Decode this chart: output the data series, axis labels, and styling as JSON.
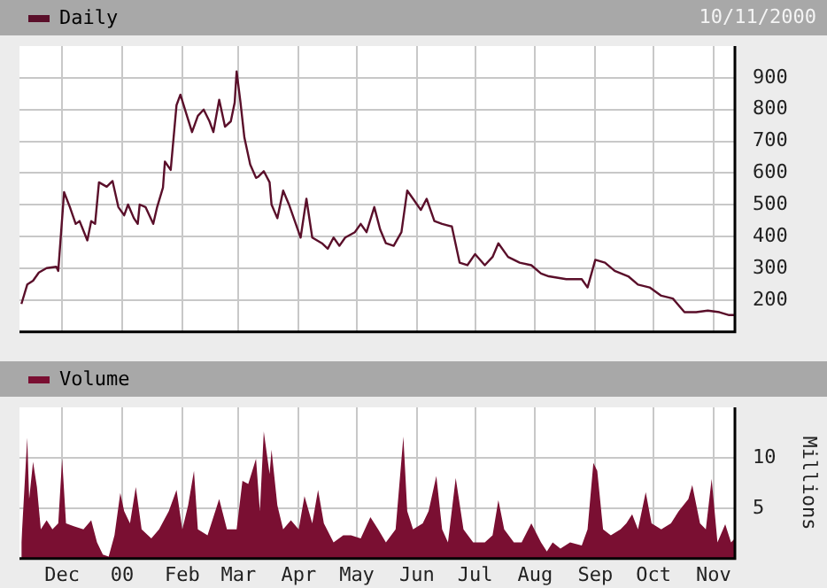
{
  "chart_data": [
    {
      "type": "line",
      "annotations": [
        "10/11/2000"
      ],
      "legend": "top left",
      "grid": true,
      "tick_labels": "y",
      "marker": "none",
      "xlim": [
        "1999-11-09",
        "2000-11-12"
      ],
      "xticks": [
        {
          "value": "1999-12-01",
          "label": null
        },
        {
          "value": "2000-01-01",
          "label": null
        },
        {
          "value": "2000-02-01",
          "label": null
        },
        {
          "value": "2000-03-01",
          "label": null
        },
        {
          "value": "2000-04-01",
          "label": null
        },
        {
          "value": "2000-05-01",
          "label": null
        },
        {
          "value": "2000-06-01",
          "label": null
        },
        {
          "value": "2000-07-01",
          "label": null
        },
        {
          "value": "2000-08-01",
          "label": null
        },
        {
          "value": "2000-09-01",
          "label": null
        },
        {
          "value": "2000-10-01",
          "label": null
        },
        {
          "value": "2000-11-01",
          "label": null
        }
      ],
      "ylim": [
        100,
        1000
      ],
      "yticks": [
        200,
        300,
        400,
        500,
        600,
        700,
        800,
        900
      ],
      "series": [
        {
          "name": "Daily",
          "color": "#5a0f2a",
          "x": [
            "1999-11-10",
            "1999-11-13",
            "1999-11-16",
            "1999-11-19",
            "1999-11-23",
            "1999-11-28",
            "1999-11-29",
            "1999-12-02",
            "1999-12-05",
            "1999-12-08",
            "1999-12-10",
            "1999-12-14",
            "1999-12-16",
            "1999-12-18",
            "1999-12-20",
            "1999-12-24",
            "1999-12-27",
            "1999-12-30",
            "2000-01-02",
            "2000-01-04",
            "2000-01-07",
            "2000-01-09",
            "2000-01-10",
            "2000-01-13",
            "2000-01-17",
            "2000-01-19",
            "2000-01-22",
            "2000-01-23",
            "2000-01-26",
            "2000-01-29",
            "2000-01-31",
            "2000-02-03",
            "2000-02-06",
            "2000-02-09",
            "2000-02-12",
            "2000-02-15",
            "2000-02-17",
            "2000-02-20",
            "2000-02-23",
            "2000-02-26",
            "2000-02-28",
            "2000-02-29",
            "2000-03-02",
            "2000-03-04",
            "2000-03-07",
            "2000-03-10",
            "2000-03-11",
            "2000-03-14",
            "2000-03-17",
            "2000-03-18",
            "2000-03-21",
            "2000-03-24",
            "2000-03-27",
            "2000-03-30",
            "2000-04-02",
            "2000-04-05",
            "2000-04-08",
            "2000-04-13",
            "2000-04-16",
            "2000-04-19",
            "2000-04-22",
            "2000-04-25",
            "2000-04-30",
            "2000-05-03",
            "2000-05-06",
            "2000-05-10",
            "2000-05-13",
            "2000-05-16",
            "2000-05-20",
            "2000-05-24",
            "2000-05-27",
            "2000-05-30",
            "2000-06-03",
            "2000-06-06",
            "2000-06-10",
            "2000-06-14",
            "2000-06-19",
            "2000-06-23",
            "2000-06-27",
            "2000-07-01",
            "2000-07-06",
            "2000-07-10",
            "2000-07-13",
            "2000-07-18",
            "2000-07-24",
            "2000-07-30",
            "2000-08-04",
            "2000-08-08",
            "2000-08-17",
            "2000-08-25",
            "2000-08-28",
            "2000-09-01",
            "2000-09-06",
            "2000-09-11",
            "2000-09-18",
            "2000-09-23",
            "2000-09-29",
            "2000-10-05",
            "2000-10-11",
            "2000-10-17",
            "2000-10-23",
            "2000-10-29",
            "2000-11-04",
            "2000-11-09",
            "2000-11-12"
          ],
          "values": [
            188,
            249,
            261,
            287,
            301,
            305,
            292,
            540,
            493,
            440,
            449,
            388,
            449,
            440,
            571,
            557,
            575,
            493,
            467,
            501,
            458,
            440,
            501,
            493,
            440,
            493,
            554,
            636,
            610,
            814,
            847,
            788,
            729,
            780,
            800,
            763,
            729,
            831,
            746,
            763,
            822,
            920,
            822,
            712,
            627,
            585,
            588,
            606,
            571,
            501,
            458,
            545,
            501,
            449,
            397,
            519,
            397,
            379,
            362,
            397,
            371,
            397,
            414,
            440,
            414,
            493,
            423,
            379,
            371,
            414,
            545,
            519,
            484,
            519,
            449,
            440,
            432,
            318,
            310,
            345,
            310,
            336,
            379,
            336,
            318,
            310,
            284,
            275,
            266,
            266,
            240,
            327,
            318,
            292,
            275,
            249,
            240,
            214,
            205,
            162,
            162,
            167,
            162,
            153,
            153
          ]
        }
      ]
    },
    {
      "type": "area",
      "ylabel": "Millions",
      "legend": "top left",
      "grid": true,
      "marker": "none",
      "xlim": [
        "1999-11-09",
        "2000-11-12"
      ],
      "xticks": [
        {
          "value": "1999-12-01",
          "label": "Dec"
        },
        {
          "value": "2000-01-01",
          "label": "00"
        },
        {
          "value": "2000-02-01",
          "label": "Feb"
        },
        {
          "value": "2000-03-01",
          "label": "Mar"
        },
        {
          "value": "2000-04-01",
          "label": "Apr"
        },
        {
          "value": "2000-05-01",
          "label": "May"
        },
        {
          "value": "2000-06-01",
          "label": "Jun"
        },
        {
          "value": "2000-07-01",
          "label": "Jul"
        },
        {
          "value": "2000-08-01",
          "label": "Aug"
        },
        {
          "value": "2000-09-01",
          "label": "Sep"
        },
        {
          "value": "2000-10-01",
          "label": "Oct"
        },
        {
          "value": "2000-11-01",
          "label": "Nov"
        }
      ],
      "ylim": [
        0,
        15
      ],
      "yticks": [
        5,
        10
      ],
      "series": [
        {
          "name": "Volume",
          "color": "#7a0f32",
          "x": [
            "1999-11-10",
            "1999-11-13",
            "1999-11-14",
            "1999-11-16",
            "1999-11-18",
            "1999-11-20",
            "1999-11-23",
            "1999-11-26",
            "1999-11-29",
            "1999-12-01",
            "1999-12-03",
            "1999-12-07",
            "1999-12-12",
            "1999-12-16",
            "1999-12-19",
            "1999-12-22",
            "1999-12-25",
            "1999-12-28",
            "1999-12-31",
            "2000-01-02",
            "2000-01-05",
            "2000-01-08",
            "2000-01-11",
            "2000-01-16",
            "2000-01-20",
            "2000-01-25",
            "2000-01-29",
            "2000-02-01",
            "2000-02-04",
            "2000-02-07",
            "2000-02-09",
            "2000-02-14",
            "2000-02-20",
            "2000-02-24",
            "2000-02-29",
            "2000-03-03",
            "2000-03-06",
            "2000-03-10",
            "2000-03-12",
            "2000-03-14",
            "2000-03-17",
            "2000-03-18",
            "2000-03-21",
            "2000-03-24",
            "2000-03-28",
            "2000-04-01",
            "2000-04-04",
            "2000-04-08",
            "2000-04-11",
            "2000-04-14",
            "2000-04-19",
            "2000-04-24",
            "2000-04-28",
            "2000-05-03",
            "2000-05-08",
            "2000-05-12",
            "2000-05-16",
            "2000-05-21",
            "2000-05-25",
            "2000-05-27",
            "2000-05-30",
            "2000-06-04",
            "2000-06-07",
            "2000-06-11",
            "2000-06-14",
            "2000-06-17",
            "2000-06-21",
            "2000-06-25",
            "2000-06-30",
            "2000-07-06",
            "2000-07-10",
            "2000-07-13",
            "2000-07-16",
            "2000-07-21",
            "2000-07-25",
            "2000-07-30",
            "2000-08-04",
            "2000-08-07",
            "2000-08-10",
            "2000-08-14",
            "2000-08-19",
            "2000-08-25",
            "2000-08-28",
            "2000-08-31",
            "2000-09-02",
            "2000-09-05",
            "2000-09-09",
            "2000-09-14",
            "2000-09-17",
            "2000-09-20",
            "2000-09-23",
            "2000-09-27",
            "2000-09-30",
            "2000-10-05",
            "2000-10-10",
            "2000-10-14",
            "2000-10-19",
            "2000-10-21",
            "2000-10-25",
            "2000-10-28",
            "2000-10-31",
            "2000-11-03",
            "2000-11-07",
            "2000-11-10",
            "2000-11-12"
          ],
          "values": [
            1.6,
            12,
            5.9,
            9.6,
            7.1,
            2.9,
            3.8,
            2.9,
            3.5,
            9.9,
            3.5,
            3.2,
            2.9,
            3.8,
            1.6,
            0.4,
            0.2,
            2.3,
            6.5,
            4.7,
            3.5,
            7.1,
            2.9,
            2.0,
            2.9,
            4.7,
            6.8,
            2.9,
            5.3,
            8.7,
            2.9,
            2.3,
            5.9,
            2.9,
            2.9,
            7.7,
            7.4,
            9.9,
            4.7,
            12.6,
            8.4,
            10.8,
            5.3,
            2.9,
            3.8,
            2.9,
            6.2,
            3.5,
            6.8,
            3.5,
            1.6,
            2.3,
            2.3,
            2.0,
            4.1,
            2.9,
            1.6,
            2.9,
            12.1,
            4.7,
            2.9,
            3.5,
            4.7,
            8.2,
            2.9,
            1.6,
            8.0,
            2.9,
            1.6,
            1.6,
            2.3,
            5.8,
            2.9,
            1.6,
            1.6,
            3.5,
            1.6,
            0.7,
            1.6,
            1.0,
            1.6,
            1.3,
            2.9,
            9.5,
            8.7,
            2.9,
            2.3,
            2.9,
            3.5,
            4.4,
            2.9,
            6.6,
            3.5,
            2.9,
            3.5,
            4.7,
            5.9,
            7.3,
            3.5,
            2.9,
            7.9,
            1.6,
            3.4,
            1.6,
            2.0
          ]
        }
      ]
    }
  ]
}
